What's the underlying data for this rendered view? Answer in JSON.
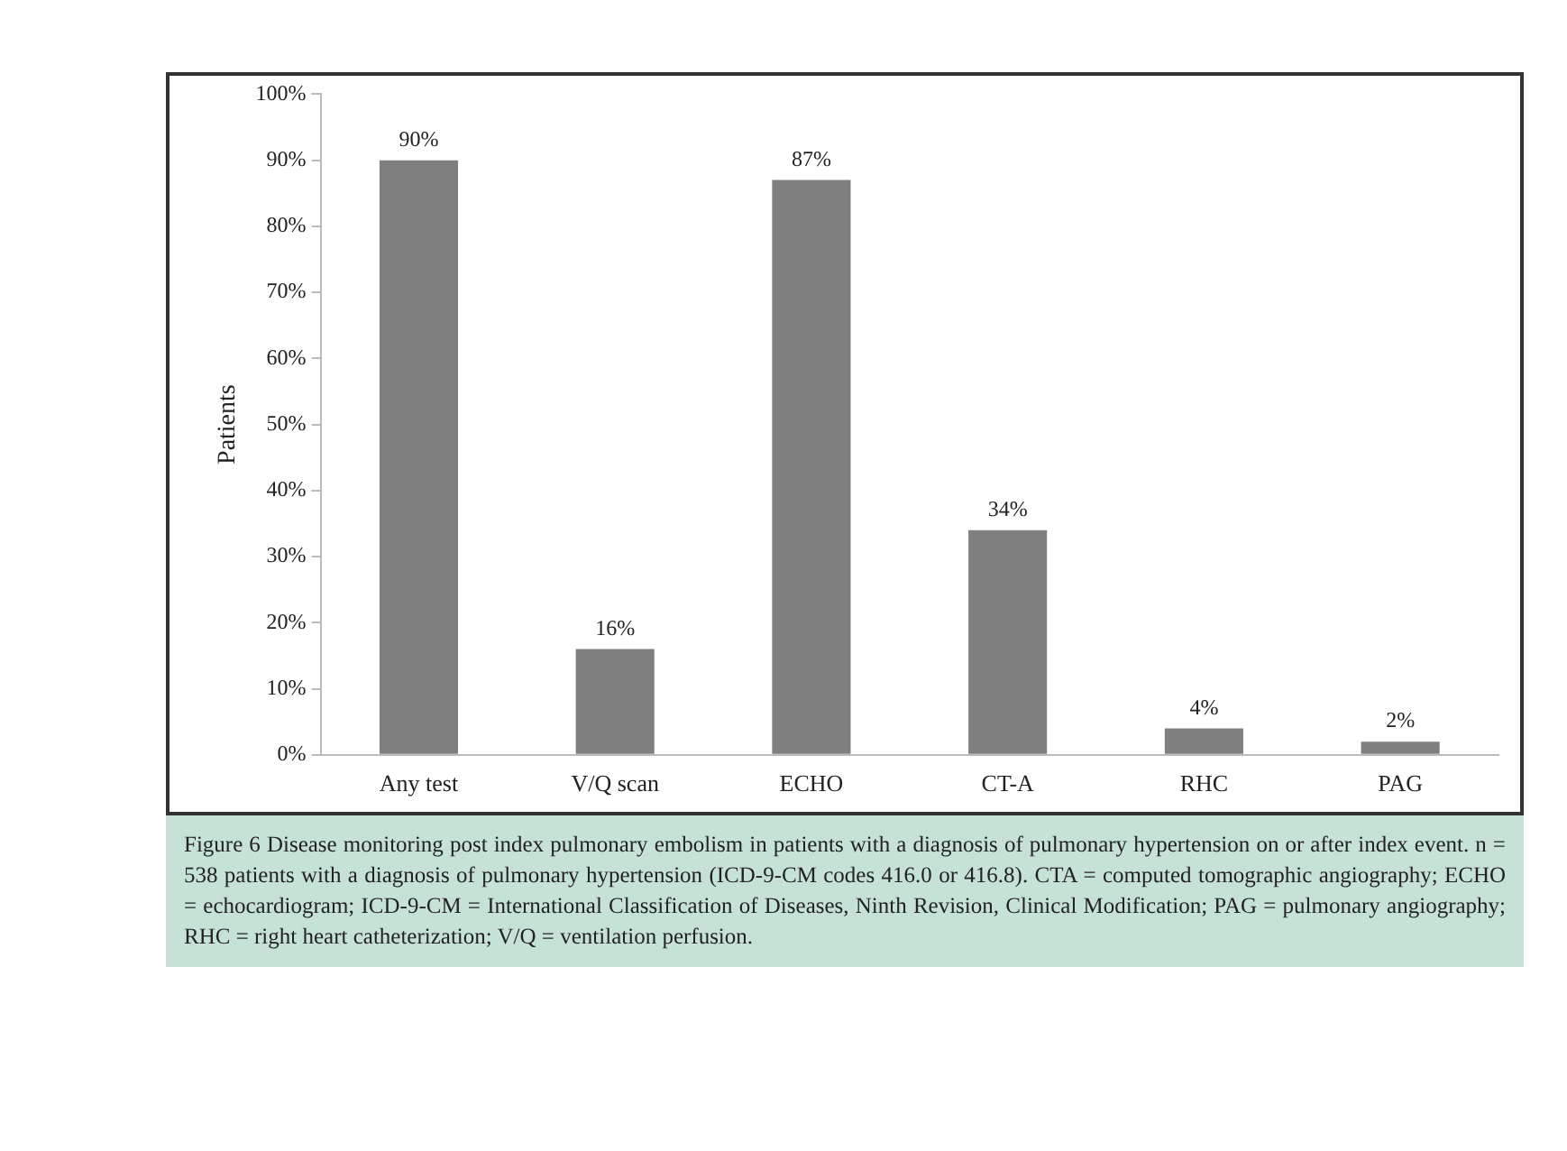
{
  "chart_data": {
    "type": "bar",
    "ylabel": "Patients",
    "categories": [
      "Any test",
      "V/Q scan",
      "ECHO",
      "CT-A",
      "RHC",
      "PAG"
    ],
    "values": [
      90,
      16,
      87,
      34,
      4,
      2
    ],
    "color": "#7f7f7f",
    "value_labels": [
      "90%",
      "16%",
      "87%",
      "34%",
      "4%",
      "2%"
    ],
    "ylim": [
      0,
      100
    ],
    "yticks": [
      {
        "value": 0,
        "label": "0%"
      },
      {
        "value": 10,
        "label": "10%"
      },
      {
        "value": 20,
        "label": "20%"
      },
      {
        "value": 30,
        "label": "30%"
      },
      {
        "value": 40,
        "label": "40%"
      },
      {
        "value": 50,
        "label": "50%"
      },
      {
        "value": 60,
        "label": "60%"
      },
      {
        "value": 70,
        "label": "70%"
      },
      {
        "value": 80,
        "label": "80%"
      },
      {
        "value": 90,
        "label": "90%"
      },
      {
        "value": 100,
        "label": "100%"
      }
    ],
    "grid": false,
    "legend": false,
    "annotations": [
      "Figure 6    Disease monitoring post index pulmonary embolism in patients with a diagnosis of pulmonary hypertension on or after index event. n = 538 patients with a diagnosis of pulmonary hypertension (ICD-9-CM codes 416.0 or 416.8). CTA = computed tomographic angiography; ECHO = echocardiogram; ICD-9-CM = International Classification of Diseases, Ninth Revision, Clinical Modification; PAG = pulmonary angiography; RHC = right heart catheterization; V/Q = ventilation perfusion."
    ]
  }
}
